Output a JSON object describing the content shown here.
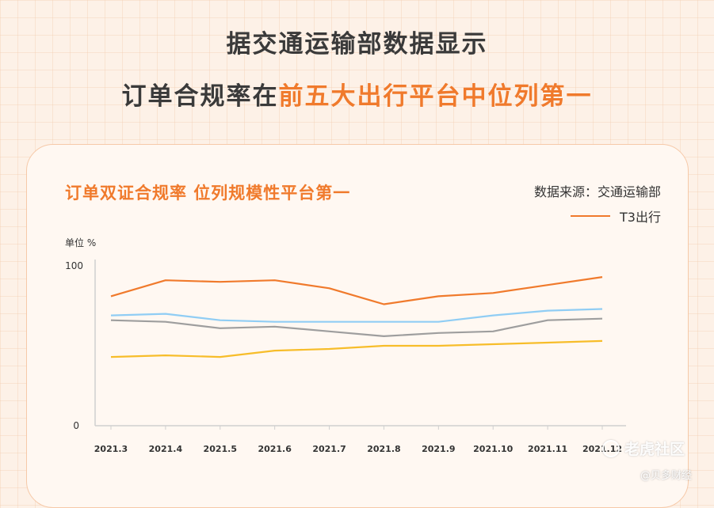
{
  "headline": {
    "line1": "据交通运输部数据显示",
    "line2_plain": "订单合规率在",
    "line2_accent": "前五大出行平台中位列第一"
  },
  "card": {
    "title": "订单双证合规率  位列规模性平台第一",
    "source": "数据来源：交通运输部",
    "legend_label": "T3出行"
  },
  "watermark": {
    "main": "老虎社区",
    "sub": "@贝多财经"
  },
  "colors": {
    "accent": "#f07a2c",
    "series_orange": "#f07a2c",
    "series_blue": "#90cdf4",
    "series_gray": "#9e9e9e",
    "series_yellow": "#f7bd2a"
  },
  "chart_data": {
    "type": "line",
    "unit_label": "单位  %",
    "ylim": [
      0,
      100
    ],
    "yticks": [
      "0",
      "100"
    ],
    "categories": [
      "2021.3",
      "2021.4",
      "2021.5",
      "2021.6",
      "2021.7",
      "2021.8",
      "2021.9",
      "2021.10",
      "2021.11",
      "2021.12"
    ],
    "series": [
      {
        "name": "T3出行",
        "color": "#f07a2c",
        "values": [
          81,
          91,
          90,
          91,
          86,
          76,
          81,
          83,
          88,
          93
        ]
      },
      {
        "color": "#90cdf4",
        "values": [
          69,
          70,
          66,
          65,
          65,
          65,
          65,
          69,
          72,
          73
        ]
      },
      {
        "color": "#9e9e9e",
        "values": [
          66,
          65,
          61,
          62,
          59,
          56,
          58,
          59,
          66,
          67
        ]
      },
      {
        "color": "#f7bd2a",
        "values": [
          43,
          44,
          43,
          47,
          48,
          50,
          50,
          51,
          52,
          53
        ]
      }
    ],
    "grid": false,
    "legend_position": "top-right"
  }
}
